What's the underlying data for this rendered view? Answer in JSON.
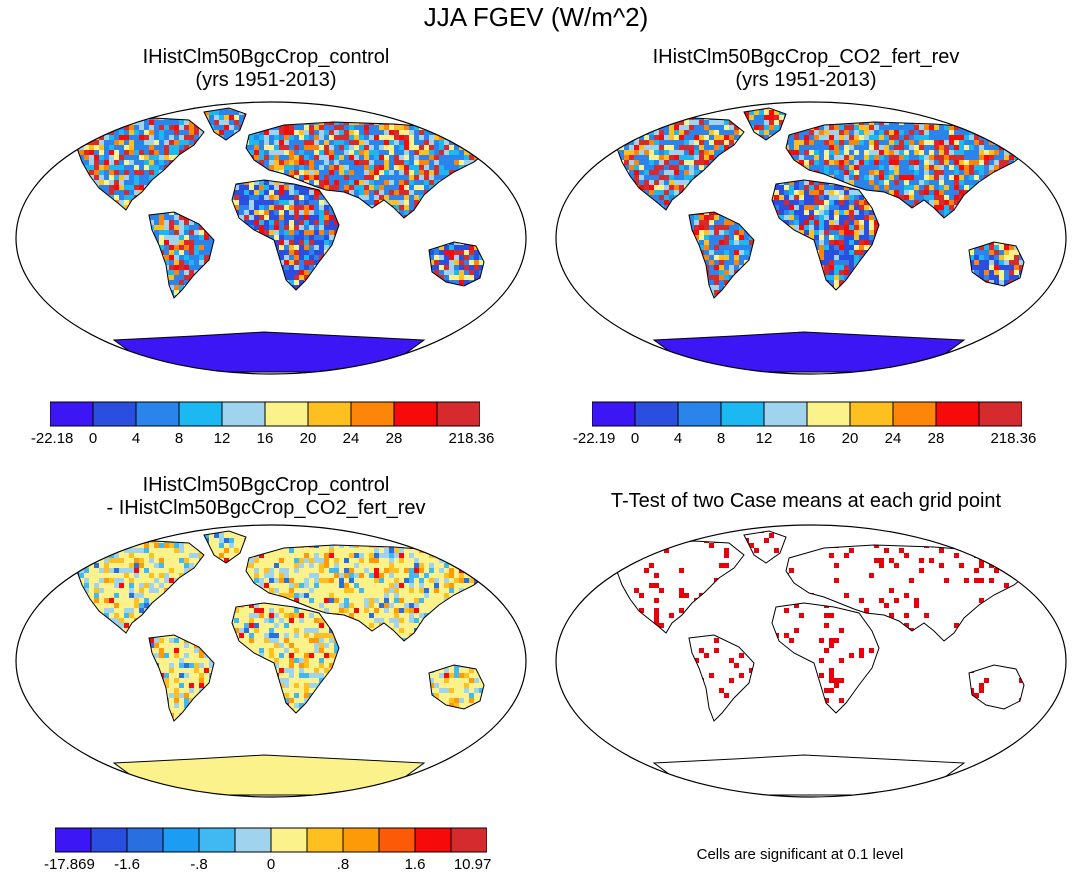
{
  "title": "JJA FGEV (W/m^2)",
  "panels": [
    {
      "id": "control",
      "title_line1": "IHistClm50BgcCrop_control",
      "title_line2": "(yrs 1951-2013)",
      "colorbar": {
        "colors": [
          "#3d16f5",
          "#2a4fe0",
          "#2a84ec",
          "#1cb8f2",
          "#9fd3ee",
          "#fbf28c",
          "#fdc020",
          "#fd8508",
          "#f70a0a",
          "#d52b2e"
        ],
        "labels": [
          "-22.18",
          "0",
          "4",
          "8",
          "12",
          "16",
          "20",
          "24",
          "28",
          "218.36"
        ]
      }
    },
    {
      "id": "co2_fert_rev",
      "title_line1": "IHistClm50BgcCrop_CO2_fert_rev",
      "title_line2": "(yrs 1951-2013)",
      "colorbar": {
        "colors": [
          "#3d16f5",
          "#2a4fe0",
          "#2a84ec",
          "#1cb8f2",
          "#9fd3ee",
          "#fbf28c",
          "#fdc020",
          "#fd8508",
          "#f70a0a",
          "#d52b2e"
        ],
        "labels": [
          "-22.19",
          "0",
          "4",
          "8",
          "12",
          "16",
          "20",
          "24",
          "28",
          "218.36"
        ]
      }
    },
    {
      "id": "difference",
      "title_line1": "IHistClm50BgcCrop_control",
      "title_line2": "- IHistClm50BgcCrop_CO2_fert_rev",
      "colorbar": {
        "colors": [
          "#3d16f5",
          "#2a4fe0",
          "#2a6fe0",
          "#1c9cf2",
          "#40b8f2",
          "#9fd3ee",
          "#fbf28c",
          "#fdc020",
          "#fd9a08",
          "#fd5a08",
          "#f70a0a",
          "#d52b2e"
        ],
        "labels": [
          "-17.869",
          "-1.6",
          "-.8",
          "0",
          ".8",
          "1.6",
          "10.97"
        ]
      }
    },
    {
      "id": "ttest",
      "title_line1": "T-Test of two Case means at each grid point",
      "title_line2": "",
      "note": "Cells are significant at 0.1 level"
    }
  ]
}
